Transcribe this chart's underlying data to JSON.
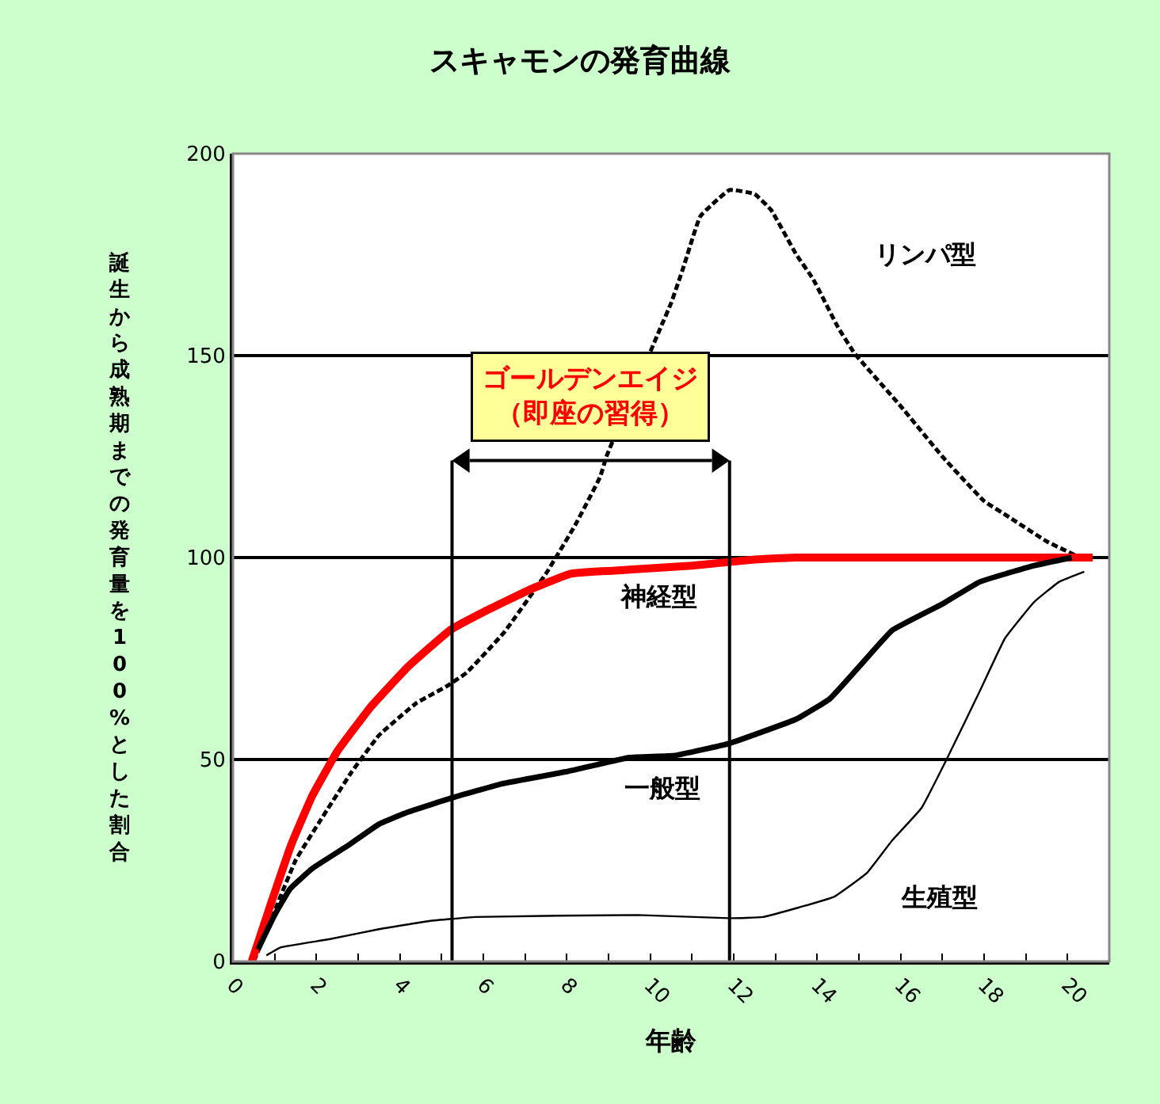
{
  "chart_data": {
    "type": "line",
    "title": "スキャモンの発育曲線",
    "xlabel": "年齢",
    "ylabel": "誕生から成熟期までの発育量を100%とした割合",
    "xlim": [
      0,
      21
    ],
    "ylim": [
      0,
      200
    ],
    "xticks": [
      0,
      {
        "value": 1,
        "label": null
      },
      2,
      {
        "value": 3,
        "label": null
      },
      4,
      {
        "value": 5,
        "label": null
      },
      6,
      {
        "value": 7,
        "label": null
      },
      8,
      {
        "value": 9,
        "label": null
      },
      10,
      {
        "value": 11,
        "label": null
      },
      12,
      {
        "value": 13,
        "label": null
      },
      14,
      {
        "value": 15,
        "label": null
      },
      16,
      {
        "value": 17,
        "label": null
      },
      18,
      {
        "value": 19,
        "label": null
      },
      20
    ],
    "yticks": [
      0,
      50,
      100,
      150,
      200
    ],
    "grid": "y",
    "legend": false,
    "marker": "none",
    "series": [
      {
        "name": "リンパ型",
        "color": "#000000",
        "line_style": "dotted",
        "x": [
          0.5,
          0.8,
          1.5,
          2.1,
          2.85,
          3.5,
          4.4,
          5.1,
          5.6,
          6.5,
          7.5,
          8.2,
          8.8,
          8.95,
          10.25,
          10.5,
          10.8,
          11.2,
          11.9,
          12.5,
          12.9,
          13.5,
          13.9,
          14.5,
          14.9,
          16.0,
          17.0,
          18.0,
          18.6,
          19.5,
          20.3
        ],
        "values": [
          0,
          7.5,
          25,
          35,
          47,
          56,
          64,
          68,
          71.5,
          81.5,
          96,
          108,
          120,
          125,
          157,
          163,
          172,
          184.5,
          191,
          190,
          186,
          175,
          169,
          157,
          150.5,
          137.5,
          125,
          114,
          110,
          104,
          100
        ]
      },
      {
        "name": "神経型",
        "color": "#ff0000",
        "line_style": "solid",
        "x": [
          0.45,
          0.9,
          1.4,
          1.9,
          2.5,
          3.3,
          4.2,
          5.2,
          6.1,
          7.1,
          8.1,
          9.5,
          11,
          12.5,
          13.5,
          20.6
        ],
        "values": [
          0,
          14,
          29,
          41,
          52,
          63,
          73,
          82,
          87,
          92,
          96,
          97,
          98,
          99.5,
          100,
          100
        ]
      },
      {
        "name": "一般型",
        "color": "#000000",
        "line_style": "solid",
        "x": [
          0.6,
          1.0,
          1.37,
          1.9,
          2.8,
          3.5,
          4.2,
          5.25,
          6.45,
          8.0,
          9.5,
          10.6,
          11.9,
          13.5,
          14.3,
          15.05,
          15.8,
          17.0,
          17.9,
          19.2,
          20.1
        ],
        "values": [
          3,
          11.5,
          18,
          23,
          29,
          34,
          37,
          40.5,
          44,
          47,
          50.5,
          51,
          54,
          60,
          65,
          73.5,
          82,
          88.5,
          94,
          98,
          100
        ]
      },
      {
        "name": "生殖型",
        "color": "#000000",
        "line_style": "solid",
        "x": [
          0.8,
          1.15,
          2.3,
          3.5,
          4.7,
          5.8,
          9.7,
          11.9,
          12.7,
          14.4,
          15.2,
          15.8,
          16.5,
          17.1,
          17.9,
          18.5,
          19.2,
          19.8,
          20.4
        ],
        "values": [
          1.5,
          3.5,
          5.5,
          8,
          10,
          11,
          11.5,
          10.7,
          11,
          16,
          22,
          30,
          38,
          50,
          67,
          80,
          89,
          94,
          96.5
        ]
      }
    ],
    "ref_lines": [
      {
        "axis": "x",
        "value": 5.25,
        "color": "#000000",
        "label": "ゴールデンエイジ（即座の習得）"
      },
      {
        "axis": "x",
        "value": 11.9,
        "color": "#000000"
      }
    ]
  }
}
